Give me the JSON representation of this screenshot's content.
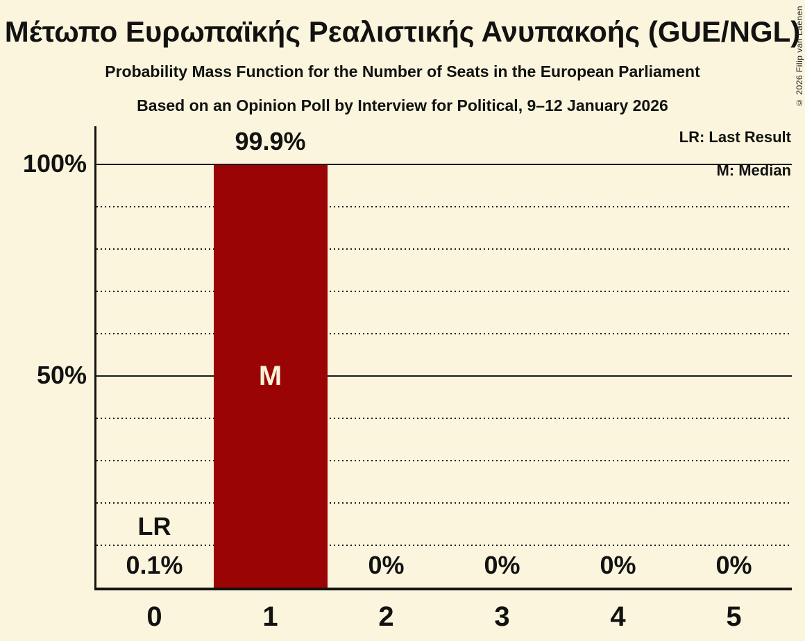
{
  "title": "Μέτωπο Ευρωπαϊκής Ρεαλιστικής Ανυπακοής (GUE/NGL)",
  "subtitle1": "Probability Mass Function for the Number of Seats in the European Parliament",
  "subtitle2": "Based on an Opinion Poll by Interview for Political, 9–12 January 2026",
  "copyright": "© 2026 Filip van Laenen",
  "legend": {
    "lr": "LR: Last Result",
    "m": "M: Median"
  },
  "chart_data": {
    "type": "bar",
    "title": "Μέτωπο Ευρωπαϊκής Ρεαλιστικής Ανυπακοής (GUE/NGL)",
    "xlabel": "Number of Seats in the European Parliament",
    "ylabel": "Probability Mass",
    "categories": [
      "0",
      "1",
      "2",
      "3",
      "4",
      "5"
    ],
    "values": [
      0.1,
      99.9,
      0,
      0,
      0,
      0
    ],
    "value_labels": [
      "0.1%",
      "99.9%",
      "0%",
      "0%",
      "0%",
      "0%"
    ],
    "median_category_index": 1,
    "median_marker": "M",
    "last_result_category_index": 0,
    "last_result_marker": "LR",
    "ylim": [
      0,
      100
    ],
    "y_ticks": [
      {
        "value": 100,
        "label": "100%"
      },
      {
        "value": 50,
        "label": "50%"
      }
    ],
    "solid_gridlines": [
      100,
      50
    ],
    "dotted_gridlines": [
      90,
      80,
      70,
      60,
      40,
      30,
      20,
      10
    ],
    "grid": true,
    "legend_position": "top-right",
    "colors": {
      "bar": "#9B0404",
      "bar_label": "#FAF2D8",
      "background": "#FAF5DC",
      "text": "#121212"
    }
  }
}
